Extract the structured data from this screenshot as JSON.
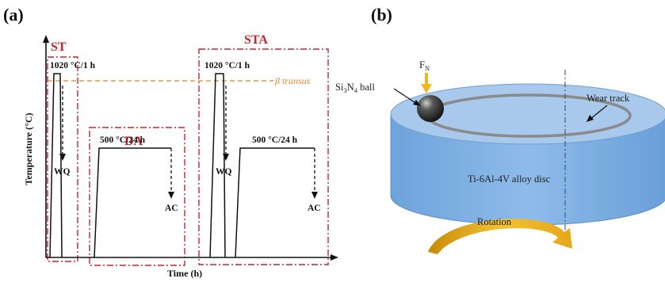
{
  "panel_a": {
    "label": "(a)",
    "y_axis": "Temperature (°C)",
    "x_axis": "Time (h)",
    "beta_transus": "β transus",
    "treatments": {
      "st": {
        "name": "ST",
        "condition": "1020 °C/1 h",
        "quench": "WQ"
      },
      "da": {
        "name": "DA",
        "condition": "500 °C/24 h",
        "quench": "AC"
      },
      "sta": {
        "name": "STA",
        "condition_1": "1020 °C/1 h",
        "quench_1": "WQ",
        "condition_2": "500 °C/24 h",
        "quench_2": "AC"
      }
    }
  },
  "panel_b": {
    "label": "(b)",
    "force": {
      "main": "F",
      "sub": "N"
    },
    "ball": {
      "main": "Si",
      "sub1": "3",
      "mid": "N",
      "sub2": "4",
      "tail": " ball"
    },
    "wear_track": "Wear track",
    "disc": "Ti-6Al-4V alloy disc",
    "rotation": "Rotation",
    "colors": {
      "disc_top": "#a9c9ec",
      "disc_side": "#7aaee3",
      "track": "#8a8a8a",
      "arrow": "#e6a817"
    }
  }
}
